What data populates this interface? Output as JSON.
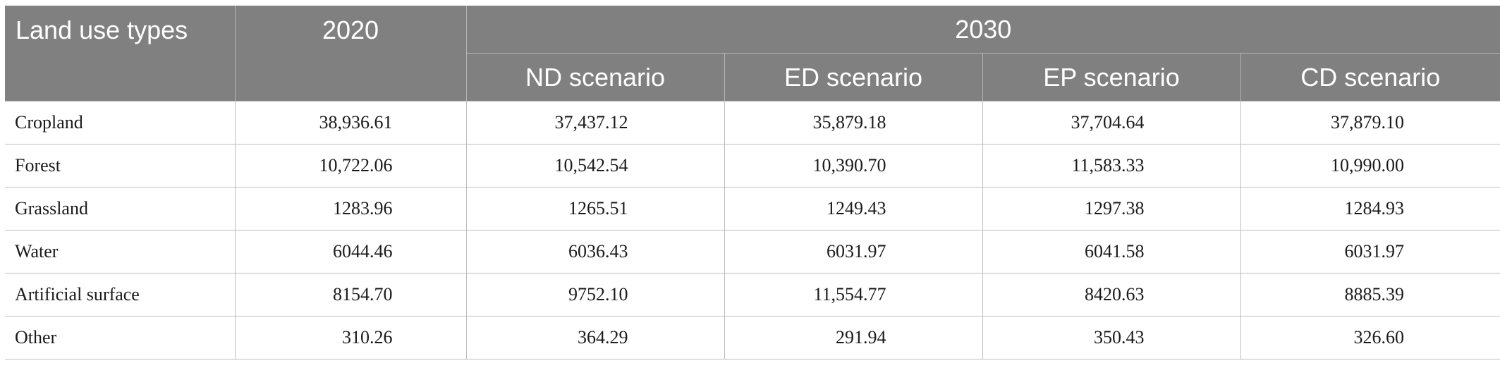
{
  "header": {
    "land_use_types": "Land use types",
    "year_2020": "2020",
    "year_2030": "2030",
    "scenarios": [
      "ND scenario",
      "ED scenario",
      "EP scenario",
      "CD scenario"
    ]
  },
  "colors": {
    "header_bg": "#808080",
    "header_text": "#ffffff",
    "grid_line": "#bdbdbd"
  },
  "rows": [
    {
      "type": "Cropland",
      "y2020": "38,936.61",
      "nd": "37,437.12",
      "ed": "35,879.18",
      "ep": "37,704.64",
      "cd": "37,879.10"
    },
    {
      "type": "Forest",
      "y2020": "10,722.06",
      "nd": "10,542.54",
      "ed": "10,390.70",
      "ep": "11,583.33",
      "cd": "10,990.00"
    },
    {
      "type": "Grassland",
      "y2020": "1283.96",
      "nd": "1265.51",
      "ed": "1249.43",
      "ep": "1297.38",
      "cd": "1284.93"
    },
    {
      "type": "Water",
      "y2020": "6044.46",
      "nd": "6036.43",
      "ed": "6031.97",
      "ep": "6041.58",
      "cd": "6031.97"
    },
    {
      "type": "Artificial surface",
      "y2020": "8154.70",
      "nd": "9752.10",
      "ed": "11,554.77",
      "ep": "8420.63",
      "cd": "8885.39"
    },
    {
      "type": "Other",
      "y2020": "310.26",
      "nd": "364.29",
      "ed": "291.94",
      "ep": "350.43",
      "cd": "326.60"
    }
  ]
}
